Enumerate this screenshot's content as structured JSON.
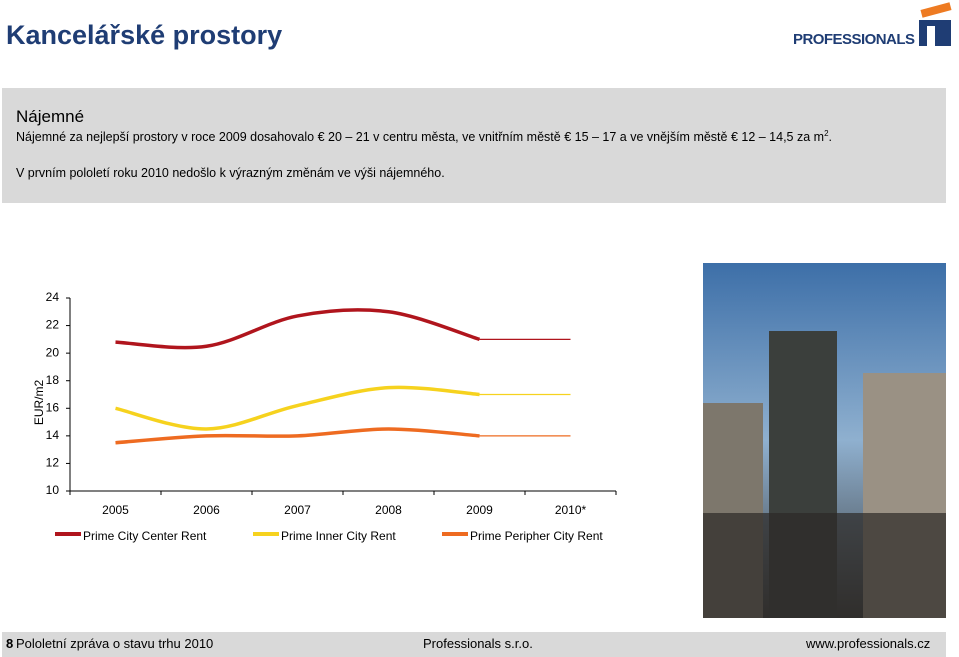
{
  "header": {
    "title": "Kancelářské prostory",
    "logo": "PROFESSIONALS"
  },
  "info": {
    "heading": "Nájemné",
    "paragraph1": "Nájemné za nejlepší prostory v roce 2009 dosahovalo € 20 – 21 v centru města, ve vnitřním městě € 15 – 17 a ve vnějším městě € 12 – 14,5 za m",
    "paragraph1_sup": "2",
    "paragraph1_end": ".",
    "paragraph2": "V prvním pololetí roku 2010 nedošlo k výrazným změnám ve výši nájemného."
  },
  "chart_data": {
    "type": "line",
    "y_label": "EUR/m2",
    "categories": [
      "2005",
      "2006",
      "2007",
      "2008",
      "2009",
      "2010*"
    ],
    "series": [
      {
        "name": "Prime City Center Rent",
        "color": "#b0151d",
        "values": [
          20.8,
          20.5,
          22.7,
          23,
          21,
          21
        ]
      },
      {
        "name": "Prime Inner City Rent",
        "color": "#f6d21e",
        "values": [
          16,
          14.5,
          16.2,
          17.5,
          17,
          17
        ]
      },
      {
        "name": "Prime Peripher City Rent",
        "color": "#ee6b21",
        "values": [
          13.5,
          14,
          14,
          14.5,
          14,
          14
        ]
      }
    ],
    "ylim": [
      10,
      24
    ],
    "yticks": [
      10,
      12,
      14,
      16,
      18,
      20,
      22,
      24
    ]
  },
  "footer": {
    "page": "8",
    "report": "Pololetní zpráva o stavu trhu 2010",
    "company": "Professionals s.r.o.",
    "web": "www.professionals.cz"
  }
}
